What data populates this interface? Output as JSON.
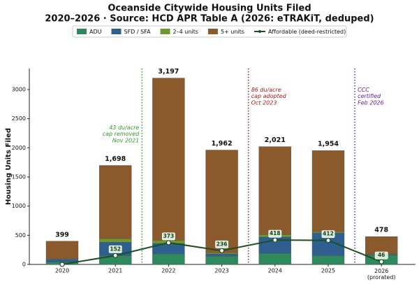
{
  "chart_data": {
    "type": "stacked-bar-line",
    "title": "Oceanside Citywide Housing Units Filed",
    "subtitle": "2020–2026  ·  Source: HCD APR Table A (2026: eTRAKiT, deduped)",
    "y_label": "Housing Units Filed",
    "categories": [
      "2020",
      "2021",
      "2022",
      "2023",
      "2024",
      "2025",
      "2026\n(prorated)"
    ],
    "series": [
      {
        "name": "ADU",
        "color": "#2e8a5c",
        "values": [
          40,
          150,
          180,
          140,
          190,
          150,
          160
        ]
      },
      {
        "name": "SFD / SFA",
        "color": "#2f5f8f",
        "values": [
          50,
          230,
          180,
          40,
          280,
          390,
          10
        ]
      },
      {
        "name": "2–4 units",
        "color": "#6c9a30",
        "values": [
          10,
          60,
          50,
          20,
          40,
          20,
          10
        ]
      },
      {
        "name": "5+ units",
        "color": "#8a5a2c",
        "values": [
          299,
          1258,
          2787,
          1762,
          1511,
          1394,
          298
        ]
      }
    ],
    "totals": [
      399,
      1698,
      3197,
      1962,
      2021,
      1954,
      478
    ],
    "total_labels": [
      "399",
      "1,698",
      "3,197",
      "1,962",
      "2,021",
      "1,954",
      "478"
    ],
    "line": {
      "name": "Affordable (deed-restricted)",
      "color": "#1e4f22",
      "values": [
        0,
        152,
        373,
        236,
        418,
        412,
        46
      ],
      "value_labels": [
        null,
        "152",
        "373",
        "236",
        "418",
        "412",
        "46"
      ]
    },
    "annotations": [
      {
        "x": 1.5,
        "color": "#2e9a2e",
        "text": "43 du/acre\ncap removed\nNov 2021",
        "side": "left"
      },
      {
        "x": 3.5,
        "color": "#b01818",
        "text": "86 du/acre\ncap adopted\nOct 2023",
        "side": "right"
      },
      {
        "x": 5.5,
        "color": "#6a1a9a",
        "text": "CCC\ncertified\nFeb 2026",
        "side": "right"
      }
    ],
    "ylim": [
      0,
      3360
    ],
    "yticks": [
      0,
      500,
      1000,
      1500,
      2000,
      2500,
      3000
    ]
  }
}
